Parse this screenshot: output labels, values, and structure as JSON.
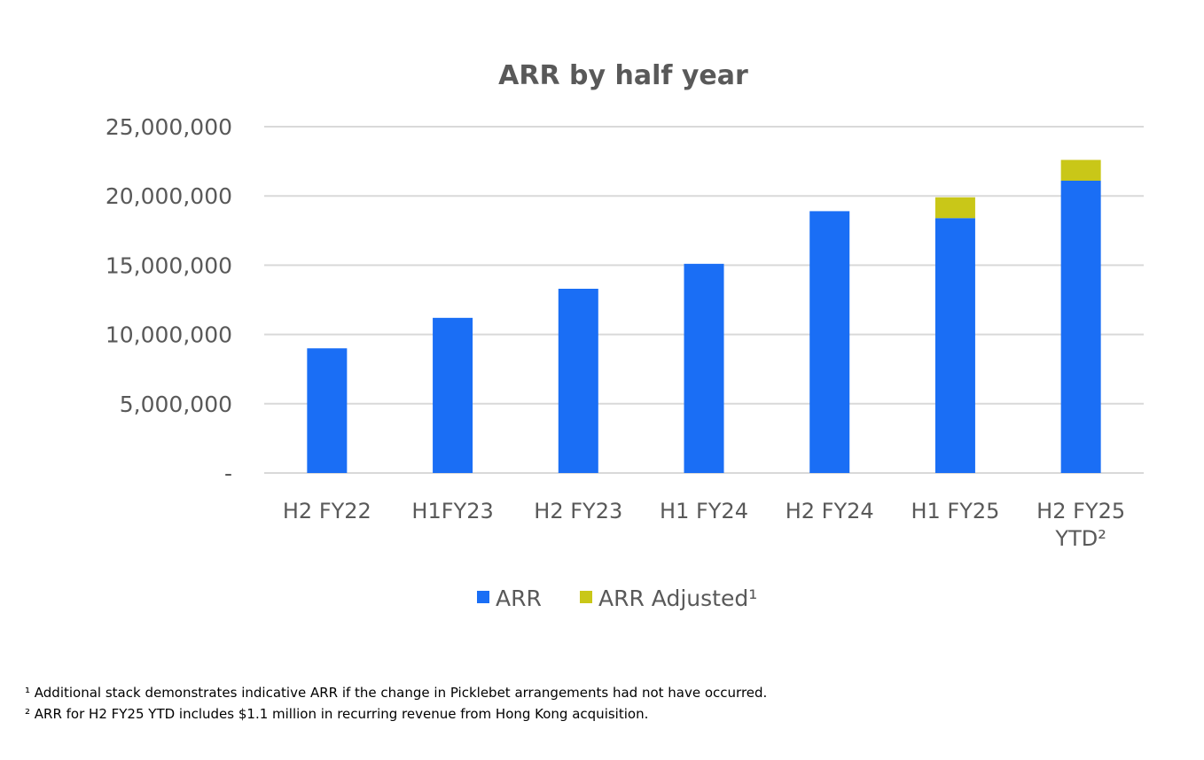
{
  "chart_data": {
    "type": "bar",
    "stacked": true,
    "title": "ARR by half year",
    "categories": [
      [
        "H2 FY22"
      ],
      [
        "H1FY23"
      ],
      [
        "H2 FY23"
      ],
      [
        "H1 FY24"
      ],
      [
        "H2 FY24"
      ],
      [
        "H1 FY25"
      ],
      [
        "H2 FY25",
        "YTD²"
      ]
    ],
    "series": [
      {
        "name": "ARR",
        "color": "#1a6ef5",
        "values": [
          9000000,
          11200000,
          13300000,
          15100000,
          18900000,
          18400000,
          21100000
        ]
      },
      {
        "name": "ARR Adjusted¹",
        "color": "#c9c718",
        "values": [
          0,
          0,
          0,
          0,
          0,
          1500000,
          1500000
        ]
      }
    ],
    "ylim": [
      0,
      25000000
    ],
    "y_ticks": [
      0,
      5000000,
      10000000,
      15000000,
      20000000,
      25000000
    ],
    "y_tick_labels": [
      "-",
      "5,000,000",
      "10,000,000",
      "15,000,000",
      "20,000,000",
      "25,000,000"
    ],
    "xlabel": "",
    "ylabel": "",
    "grid": true,
    "legend_position": "bottom"
  },
  "footnotes": [
    "¹ Additional stack demonstrates indicative ARR if the change in Picklebet arrangements had not have occurred.",
    "² ARR for H2 FY25 YTD includes $1.1 million in recurring revenue from Hong Kong acquisition."
  ]
}
